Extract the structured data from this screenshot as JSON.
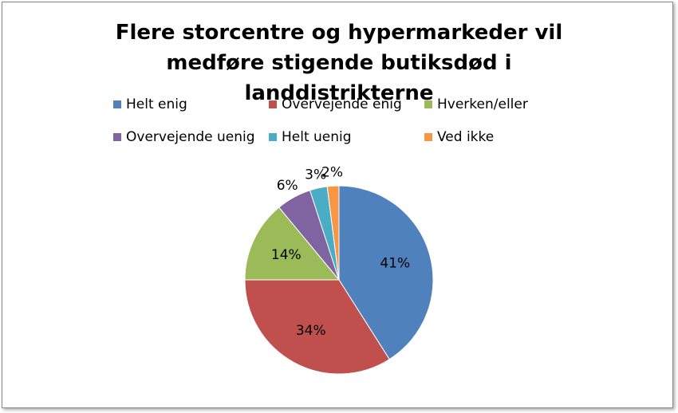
{
  "chart_data": {
    "type": "pie",
    "title": "Flere storcentre og hypermarkeder vil medføre stigende butiksdød i landdistrikterne",
    "categories": [
      "Helt enig",
      "Overvejende enig",
      "Hverken/eller",
      "Overvejende uenig",
      "Helt uenig",
      "Ved ikke"
    ],
    "values": [
      41,
      34,
      14,
      6,
      3,
      2
    ],
    "value_labels": [
      "41%",
      "34%",
      "14%",
      "6%",
      "3%",
      "2%"
    ],
    "colors": [
      "#4F81BD",
      "#C0504D",
      "#9BBB59",
      "#8064A2",
      "#4BACC6",
      "#F79646"
    ],
    "legend": "top"
  }
}
